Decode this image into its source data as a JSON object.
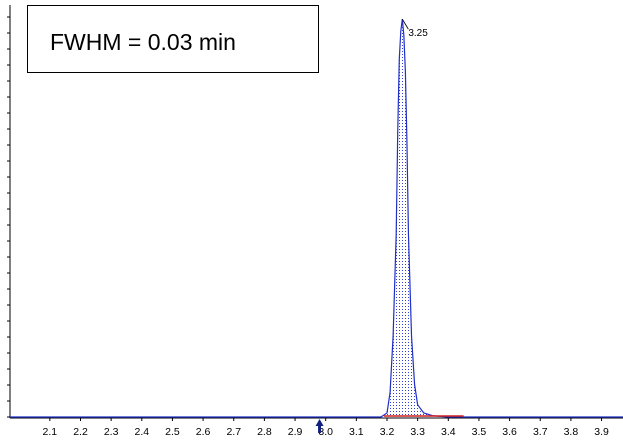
{
  "chart_data": {
    "type": "line",
    "annotation": "FWHM = 0.03 min",
    "peak_label": "3.25",
    "x": [
      1.97,
      3.18,
      3.2,
      3.21,
      3.22,
      3.23,
      3.235,
      3.24,
      3.245,
      3.25,
      3.255,
      3.26,
      3.265,
      3.27,
      3.28,
      3.29,
      3.3,
      3.32,
      3.35,
      3.4,
      3.97
    ],
    "series": [
      {
        "color": "#2030c8",
        "values": [
          0,
          0,
          1,
          6,
          20,
          45,
          70,
          88,
          95,
          98,
          94,
          85,
          68,
          45,
          20,
          8,
          3,
          1,
          0.3,
          0,
          0
        ]
      }
    ],
    "integration_baseline": [
      3.19,
      3.45
    ],
    "marker_x": 2.98,
    "xlim": [
      1.97,
      3.97
    ],
    "ylim": [
      0,
      100
    ],
    "xticks": [
      2.1,
      2.2,
      2.3,
      2.4,
      2.5,
      2.6,
      2.7,
      2.8,
      2.9,
      {
        "value": 3.0,
        "label": "3.0"
      },
      3.1,
      3.2,
      3.3,
      3.4,
      3.5,
      3.6,
      3.7,
      3.8,
      3.9
    ]
  }
}
